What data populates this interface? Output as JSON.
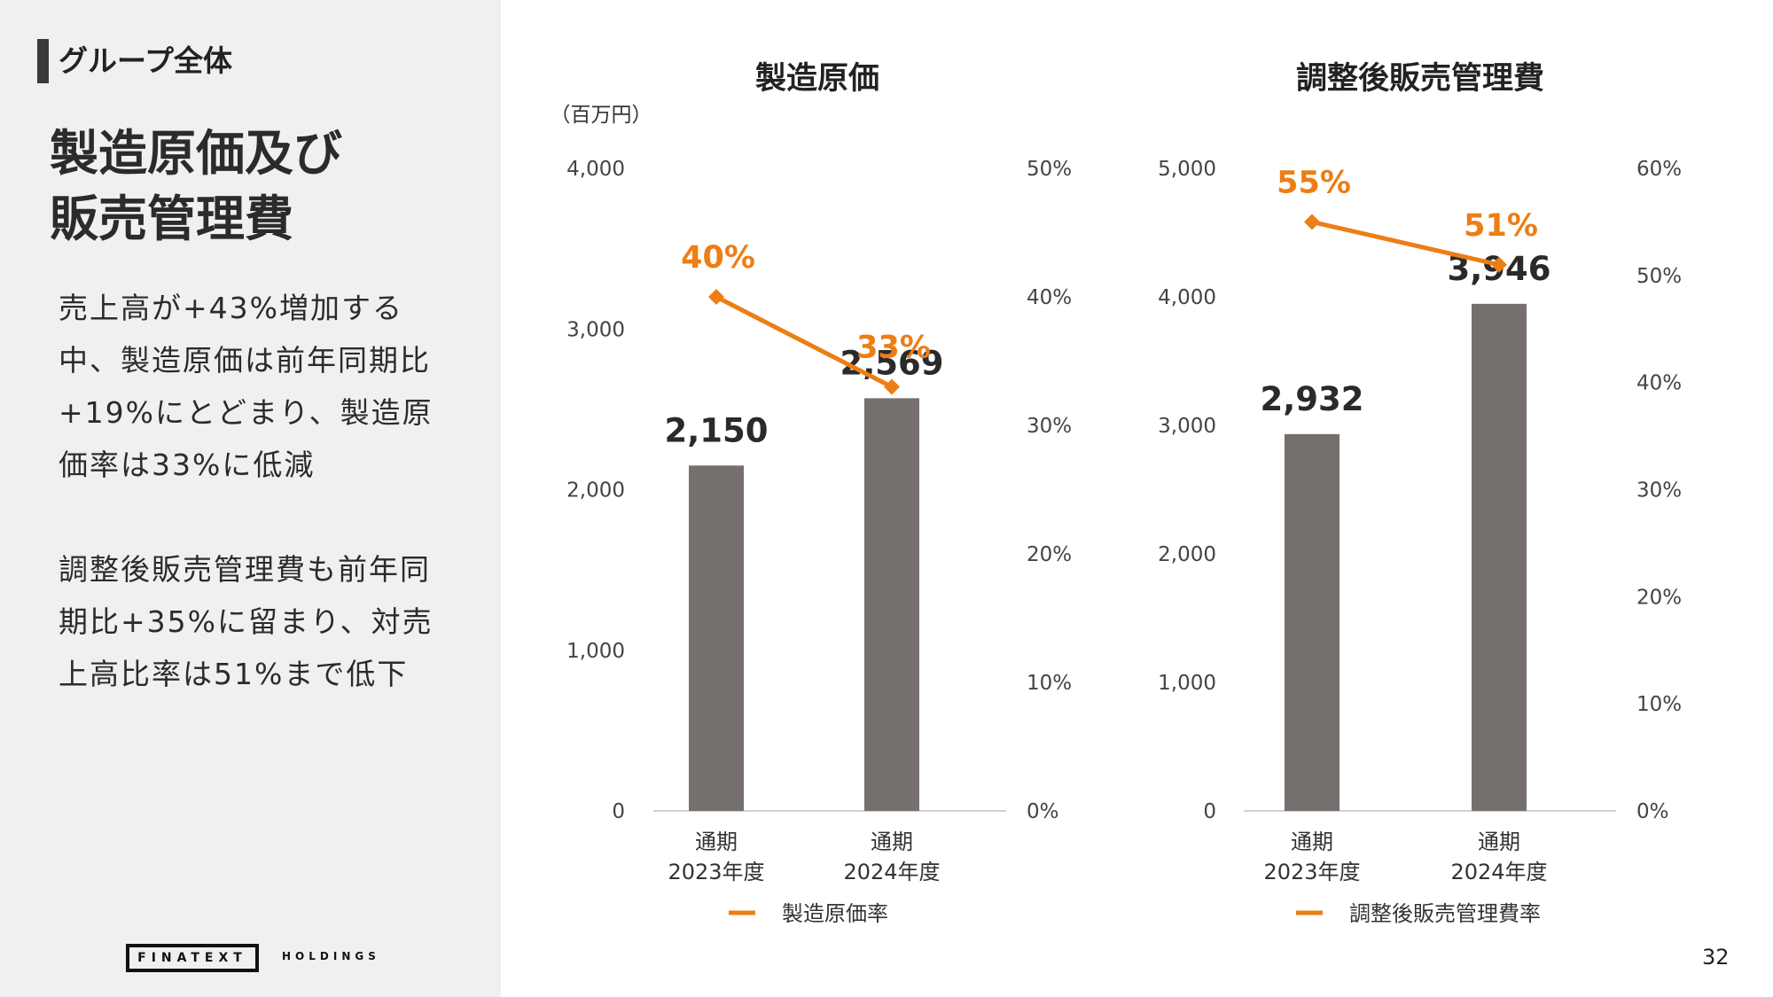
{
  "sidebar": {
    "section_label": "グループ全体",
    "title_line1": "製造原価及び",
    "title_line2": "販売管理費",
    "para1": "売上高が+43%増加する中、製造原価は前年同期比+19%にとどまり、製造原価率は33%に低減",
    "para2": "調整後販売管理費も前年同期比+35%に留まり、対売上高比率は51%まで低下",
    "logo_main": "FINATEXT",
    "logo_sub": "HOLDINGS"
  },
  "page_number": "32",
  "colors": {
    "bar": "#756F6E",
    "line": "#ED7D15",
    "panel": "#F0F0F0"
  },
  "chart_data": [
    {
      "type": "bar",
      "title": "製造原価",
      "unit": "（百万円）",
      "categories": [
        [
          "通期",
          "2023年度"
        ],
        [
          "通期",
          "2024年度"
        ]
      ],
      "values": [
        2150,
        2569
      ],
      "value_labels": [
        "2,150",
        "2,569"
      ],
      "y_ticks": [
        "0",
        "1,000",
        "2,000",
        "3,000",
        "4,000"
      ],
      "ylim": [
        0,
        4000
      ],
      "line": {
        "name": "製造原価率",
        "values": [
          40,
          33
        ],
        "labels": [
          "40%",
          "33%"
        ]
      },
      "y2_ticks": [
        "0%",
        "10%",
        "20%",
        "30%",
        "40%",
        "50%"
      ],
      "y2lim": [
        0,
        50
      ],
      "legend": "bottom"
    },
    {
      "type": "bar",
      "title": "調整後販売管理費",
      "unit": "",
      "categories": [
        [
          "通期",
          "2023年度"
        ],
        [
          "通期",
          "2024年度"
        ]
      ],
      "values": [
        2932,
        3946
      ],
      "value_labels": [
        "2,932",
        "3,946"
      ],
      "y_ticks": [
        "0",
        "1,000",
        "2,000",
        "3,000",
        "4,000",
        "5,000"
      ],
      "ylim": [
        0,
        5000
      ],
      "line": {
        "name": "調整後販売管理費率",
        "values": [
          55,
          51
        ],
        "labels": [
          "55%",
          "51%"
        ]
      },
      "y2_ticks": [
        "0%",
        "10%",
        "20%",
        "30%",
        "40%",
        "50%",
        "60%"
      ],
      "y2lim": [
        0,
        60
      ],
      "legend": "bottom"
    }
  ]
}
